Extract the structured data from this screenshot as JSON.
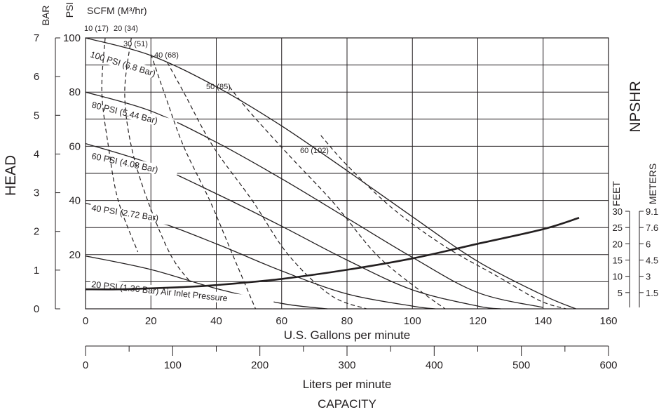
{
  "chart_data": {
    "type": "line",
    "title": "",
    "x_axis": {
      "label": "U.S. Gallons per minute",
      "range": [
        0,
        160
      ],
      "ticks": [
        "0",
        "20",
        "40",
        "60",
        "80",
        "100",
        "120",
        "140",
        "160"
      ]
    },
    "x2_axis": {
      "label": "Liters per minute",
      "range": [
        0,
        600
      ],
      "ticks": [
        "0",
        "100",
        "200",
        "300",
        "400",
        "500",
        "600"
      ]
    },
    "x_group_label": "CAPACITY",
    "y_axis": {
      "label": "HEAD",
      "unit_psi": "PSI",
      "unit_bar": "BAR",
      "range": [
        0,
        100
      ],
      "psi_ticks": [
        "20",
        "40",
        "60",
        "80",
        "100"
      ],
      "bar_ticks": [
        "0",
        "1",
        "2",
        "3",
        "4",
        "5",
        "6",
        "7"
      ]
    },
    "scfm_label": "SCFM (M³/hr)",
    "npshr_axis": {
      "label": "NPSHR",
      "feet_label": "FEET",
      "meters_label": "METERS",
      "feet_ticks": [
        "5",
        "10",
        "15",
        "20",
        "25",
        "30"
      ],
      "meters_ticks": [
        "1.5",
        "3",
        "4.5",
        "6",
        "7.6",
        "9.1"
      ],
      "range_feet": [
        0,
        40
      ]
    },
    "pressure_curves": [
      {
        "name": "100 PSI (6.8 Bar)",
        "x": [
          0,
          20,
          40,
          60,
          80,
          100,
          120,
          140,
          150
        ],
        "y": [
          100,
          93.5,
          82,
          67.5,
          51,
          34,
          17.5,
          5,
          0
        ]
      },
      {
        "name": "80 PSI (5.44 Bar)",
        "x": [
          0,
          20,
          40,
          60,
          80,
          100,
          120,
          140
        ],
        "y": [
          80,
          73,
          61.5,
          48,
          33.5,
          19,
          6,
          0.5
        ]
      },
      {
        "name": "60 PSI (4.08 Bar)",
        "x": [
          0,
          20,
          40,
          60,
          80,
          100,
          120,
          127
        ],
        "y": [
          61,
          53.5,
          42.5,
          30.5,
          18,
          7,
          1,
          0
        ]
      },
      {
        "name": "40 PSI (2.72 Bar)",
        "x": [
          0,
          20,
          40,
          60,
          80,
          100,
          107
        ],
        "y": [
          39,
          33,
          24,
          14,
          5.5,
          1,
          0
        ]
      },
      {
        "name": "20 PSI (1.36 Bar) Air Inlet Pressure",
        "x": [
          0,
          20,
          40,
          60,
          74
        ],
        "y": [
          19.5,
          14.5,
          7.5,
          2,
          0
        ]
      }
    ],
    "air_consumption_curves": [
      {
        "name": "10 (17)",
        "x": [
          6,
          5,
          7,
          10,
          16
        ],
        "y": [
          100,
          80,
          60,
          40,
          21
        ]
      },
      {
        "name": "20 (34)",
        "x": [
          14,
          12,
          14,
          19,
          26,
          32
        ],
        "y": [
          100,
          80,
          60,
          40,
          20,
          10
        ]
      },
      {
        "name": "30 (51)",
        "x": [
          20,
          24,
          30,
          38,
          45,
          52
        ],
        "y": [
          94,
          80,
          60,
          40,
          20,
          0
        ]
      },
      {
        "name": "40 (68)",
        "x": [
          25,
          30,
          39,
          51,
          62,
          75,
          86
        ],
        "y": [
          91,
          80,
          60,
          40,
          20,
          5,
          0
        ]
      },
      {
        "name": "50 (85)",
        "x": [
          44,
          50,
          62,
          76,
          89,
          102,
          110
        ],
        "y": [
          82,
          73,
          57,
          39,
          20,
          7,
          0
        ]
      },
      {
        "name": "60 (102)",
        "x": [
          72,
          80,
          94,
          110,
          126,
          139,
          147
        ],
        "y": [
          64,
          53,
          37,
          23,
          12,
          3,
          0
        ]
      }
    ],
    "npshr_curve": {
      "name": "NPSHR",
      "x": [
        0,
        10,
        20,
        30,
        40,
        60,
        80,
        100,
        120,
        140,
        151
      ],
      "y_feet": [
        6,
        6,
        6.3,
        6.7,
        7.3,
        9.2,
        12,
        15.5,
        20,
        24.5,
        28
      ]
    },
    "grid": true
  }
}
